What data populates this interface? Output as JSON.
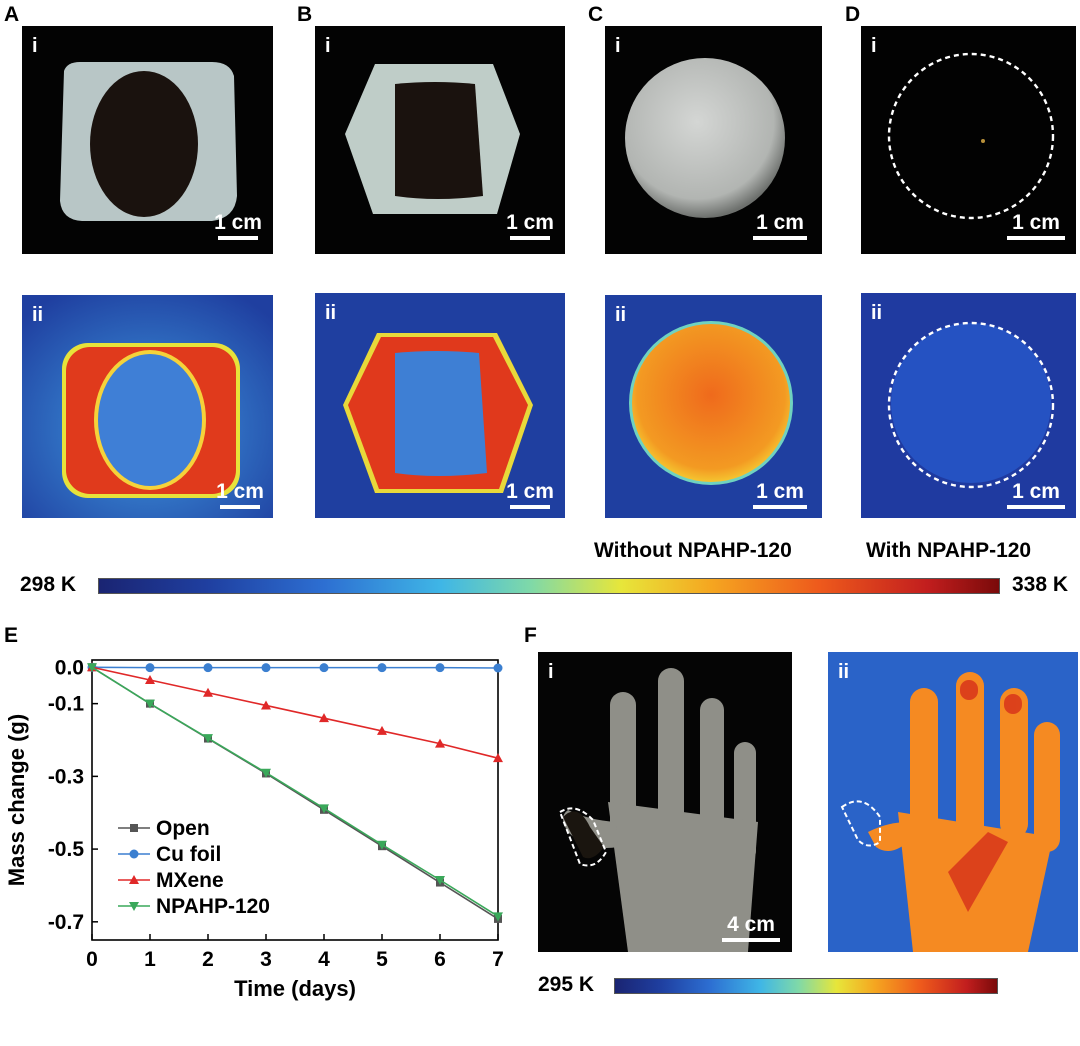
{
  "panels": {
    "A": {
      "label": "A",
      "top_roman": "i",
      "bottom_roman": "ii",
      "scale_top": "1 cm",
      "scale_bottom": "1 cm"
    },
    "B": {
      "label": "B",
      "top_roman": "i",
      "bottom_roman": "ii",
      "scale_top": "1 cm",
      "scale_bottom": "1 cm"
    },
    "C": {
      "label": "C",
      "top_roman": "i",
      "bottom_roman": "ii",
      "scale_top": "1 cm",
      "scale_bottom": "1 cm",
      "caption": "Without NPAHP-120"
    },
    "D": {
      "label": "D",
      "top_roman": "i",
      "bottom_roman": "ii",
      "scale_top": "1 cm",
      "scale_bottom": "1 cm",
      "caption": "With NPAHP-120"
    },
    "E": {
      "label": "E"
    },
    "F": {
      "label": "F",
      "left_roman": "i",
      "right_roman": "ii",
      "scale": "4 cm"
    }
  },
  "colorbar_top": {
    "min_label": "298 K",
    "max_label": "338 K"
  },
  "colorbar_bottom": {
    "min_label": "295 K"
  },
  "colors": {
    "open": "#555555",
    "cu_foil": "#3b7fd0",
    "mxene": "#e02828",
    "npahp": "#3aa85a",
    "thermal_bg": "#1f3fa0"
  },
  "chart_data": {
    "type": "line",
    "xlabel": "Time (days)",
    "ylabel": "Mass change (g)",
    "x": [
      0,
      1,
      2,
      3,
      4,
      5,
      6,
      7
    ],
    "xlim": [
      0,
      7
    ],
    "ylim": [
      -0.75,
      0.02
    ],
    "xticks": [
      "0",
      "1",
      "2",
      "3",
      "4",
      "5",
      "6",
      "7"
    ],
    "yticks": [
      {
        "value": 0.0,
        "label": "0.0"
      },
      {
        "value": -0.1,
        "label": "-0.1"
      },
      {
        "value": -0.3,
        "label": "-0.3"
      },
      {
        "value": -0.5,
        "label": "-0.5"
      },
      {
        "value": -0.7,
        "label": "-0.7"
      }
    ],
    "legend_position": "bottom-left",
    "series": [
      {
        "name": "Open",
        "marker": "square",
        "color": "#555555",
        "values": [
          0,
          -0.1,
          -0.196,
          -0.292,
          -0.392,
          -0.492,
          -0.592,
          -0.692
        ]
      },
      {
        "name": "Cu foil",
        "marker": "circle",
        "color": "#3b7fd0",
        "values": [
          0,
          -0.001,
          -0.001,
          -0.001,
          -0.001,
          -0.001,
          -0.001,
          -0.002
        ]
      },
      {
        "name": "MXene",
        "marker": "triangle-up",
        "color": "#e02828",
        "values": [
          0,
          -0.035,
          -0.07,
          -0.105,
          -0.14,
          -0.175,
          -0.21,
          -0.25
        ]
      },
      {
        "name": "NPAHP-120",
        "marker": "triangle-down",
        "color": "#3aa85a",
        "values": [
          0,
          -0.1,
          -0.195,
          -0.29,
          -0.388,
          -0.488,
          -0.585,
          -0.685
        ]
      }
    ]
  }
}
